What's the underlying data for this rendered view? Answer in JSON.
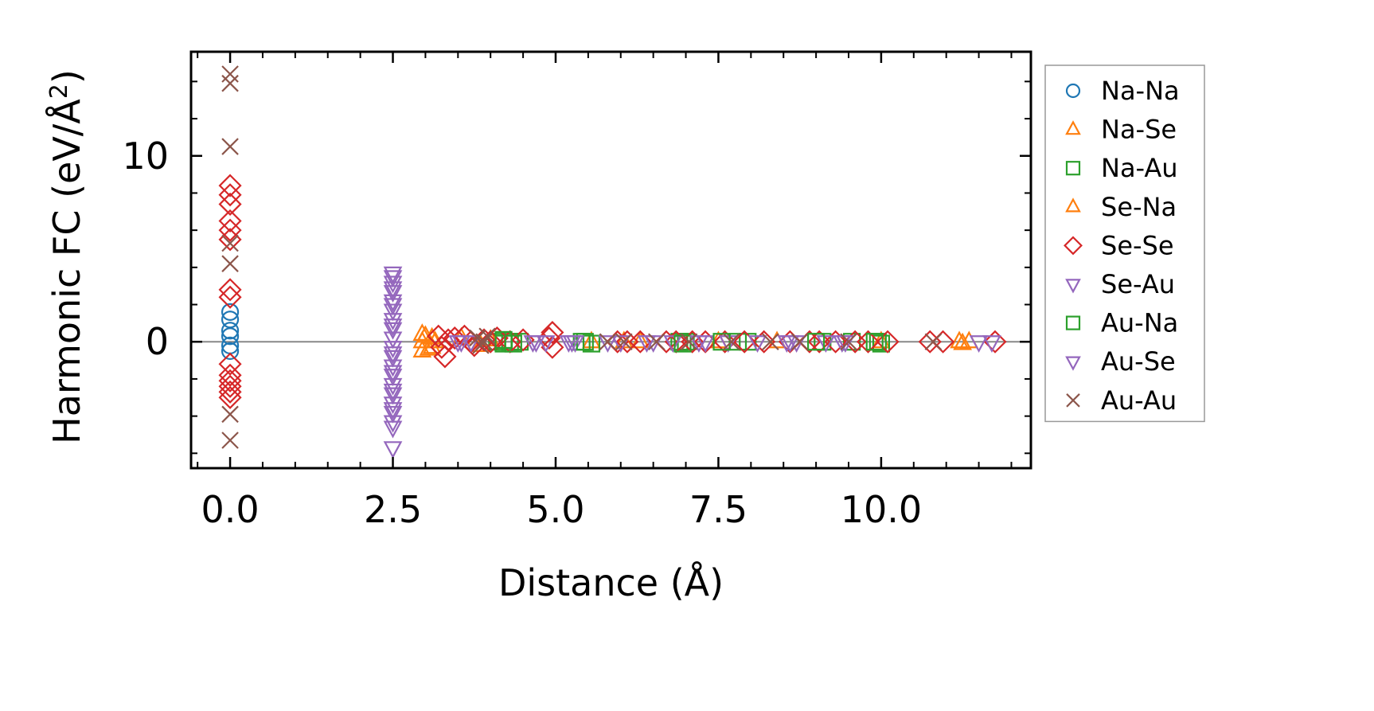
{
  "chart_data": {
    "type": "scatter",
    "xlabel": "Distance (Å)",
    "ylabel": "Harmonic FC (eV/Å²)",
    "ylabel_base": "Harmonic FC (eV/Å",
    "ylabel_sup": "2",
    "ylabel_tail": ")",
    "xlim": [
      -0.6,
      12.3
    ],
    "ylim": [
      -6.8,
      15.6
    ],
    "xticks": [
      0.0,
      2.5,
      5.0,
      7.5,
      10.0
    ],
    "xtick_labels": [
      "0.0",
      "2.5",
      "5.0",
      "7.5",
      "10.0"
    ],
    "yticks": [
      0,
      10
    ],
    "ytick_labels": [
      "0",
      "10"
    ],
    "x_minor_step": 0.5,
    "y_minor_step": 2,
    "zero_line": true,
    "legend_position": "outside-right",
    "series": [
      {
        "name": "Na-Na",
        "marker": "circle",
        "color": "#1f77b4",
        "points": [
          [
            0,
            1.6
          ],
          [
            0,
            1.2
          ],
          [
            0,
            0.6
          ],
          [
            0,
            0.3
          ],
          [
            0,
            -0.2
          ],
          [
            0,
            -0.5
          ]
        ]
      },
      {
        "name": "Na-Se",
        "marker": "triangle-up",
        "color": "#ff7f0e",
        "points": [
          [
            2.95,
            0.4
          ],
          [
            2.95,
            0.0
          ],
          [
            2.95,
            -0.5
          ],
          [
            3.1,
            0.2
          ],
          [
            3.1,
            -0.3
          ],
          [
            3.55,
            0.2
          ],
          [
            3.85,
            -0.2
          ],
          [
            5.55,
            0.0
          ],
          [
            6.05,
            0.0
          ],
          [
            7.5,
            0.0
          ],
          [
            10.0,
            0.0
          ],
          [
            11.2,
            0.0
          ],
          [
            11.35,
            0.0
          ]
        ]
      },
      {
        "name": "Na-Au",
        "marker": "square",
        "color": "#2ca02c",
        "points": [
          [
            4.1,
            0.0
          ],
          [
            4.2,
            -0.1
          ],
          [
            4.3,
            0.0
          ],
          [
            4.45,
            0.0
          ],
          [
            5.4,
            0.0
          ],
          [
            5.55,
            -0.1
          ],
          [
            6.9,
            0.0
          ],
          [
            7.0,
            0.0
          ],
          [
            7.8,
            0.0
          ],
          [
            7.95,
            0.0
          ],
          [
            9.1,
            0.0
          ],
          [
            9.55,
            0.0
          ],
          [
            9.95,
            0.0
          ],
          [
            10.0,
            -0.1
          ]
        ]
      },
      {
        "name": "Se-Na",
        "marker": "triangle-up",
        "color": "#ff7f0e",
        "points": [
          [
            3.0,
            0.3
          ],
          [
            3.05,
            -0.4
          ],
          [
            3.15,
            0.0
          ],
          [
            4.0,
            0.1
          ],
          [
            6.3,
            0.0
          ],
          [
            8.4,
            0.0
          ],
          [
            11.25,
            -0.1
          ]
        ]
      },
      {
        "name": "Se-Se",
        "marker": "diamond",
        "color": "#d62728",
        "points": [
          [
            0,
            8.4
          ],
          [
            0,
            7.9
          ],
          [
            0,
            7.4
          ],
          [
            0,
            6.5
          ],
          [
            0,
            6.0
          ],
          [
            0,
            5.5
          ],
          [
            0,
            2.8
          ],
          [
            0,
            2.4
          ],
          [
            0,
            -1.2
          ],
          [
            0,
            -1.8
          ],
          [
            0,
            -2.1
          ],
          [
            0,
            -2.4
          ],
          [
            0,
            -2.7
          ],
          [
            0,
            -3.0
          ],
          [
            3.2,
            0.3
          ],
          [
            3.25,
            -0.3
          ],
          [
            3.3,
            -0.8
          ],
          [
            3.35,
            0.1
          ],
          [
            3.45,
            0.2
          ],
          [
            3.6,
            0.3
          ],
          [
            3.7,
            0.0
          ],
          [
            3.75,
            -0.2
          ],
          [
            3.9,
            0.1
          ],
          [
            4.0,
            0.0
          ],
          [
            4.1,
            0.2
          ],
          [
            4.3,
            0.0
          ],
          [
            4.5,
            0.1
          ],
          [
            4.9,
            0.2
          ],
          [
            4.95,
            0.5
          ],
          [
            4.95,
            -0.3
          ],
          [
            5.95,
            0.0
          ],
          [
            6.1,
            0.0
          ],
          [
            6.3,
            0.0
          ],
          [
            6.7,
            0.0
          ],
          [
            6.85,
            0.0
          ],
          [
            7.1,
            0.0
          ],
          [
            7.3,
            0.0
          ],
          [
            7.6,
            0.0
          ],
          [
            7.9,
            0.0
          ],
          [
            8.2,
            0.0
          ],
          [
            8.6,
            0.0
          ],
          [
            8.9,
            0.0
          ],
          [
            9.05,
            0.0
          ],
          [
            9.3,
            0.0
          ],
          [
            9.6,
            0.0
          ],
          [
            9.8,
            0.0
          ],
          [
            10.1,
            0.0
          ],
          [
            10.75,
            0.0
          ],
          [
            10.95,
            0.0
          ],
          [
            11.75,
            0.0
          ]
        ]
      },
      {
        "name": "Se-Au",
        "marker": "triangle-down",
        "color": "#9467bd",
        "points": [
          [
            2.5,
            3.7
          ],
          [
            2.5,
            3.2
          ],
          [
            2.5,
            2.7
          ],
          [
            2.5,
            2.2
          ],
          [
            2.5,
            1.7
          ],
          [
            2.5,
            1.2
          ],
          [
            2.5,
            0.7
          ],
          [
            2.5,
            0.2
          ],
          [
            2.5,
            -0.3
          ],
          [
            2.5,
            -0.8
          ],
          [
            2.5,
            -1.3
          ],
          [
            2.5,
            -1.8
          ],
          [
            2.5,
            -2.3
          ],
          [
            2.5,
            -2.8
          ],
          [
            2.5,
            -3.3
          ],
          [
            2.5,
            -3.8
          ],
          [
            2.5,
            -4.3
          ],
          [
            2.5,
            -5.7
          ],
          [
            3.55,
            0.0
          ],
          [
            3.7,
            0.0
          ],
          [
            4.65,
            0.0
          ],
          [
            4.85,
            0.0
          ],
          [
            5.2,
            0.0
          ],
          [
            5.3,
            0.0
          ],
          [
            5.8,
            0.0
          ],
          [
            6.0,
            0.0
          ],
          [
            6.5,
            0.0
          ],
          [
            6.8,
            0.0
          ],
          [
            7.3,
            0.0
          ],
          [
            7.65,
            0.0
          ],
          [
            8.1,
            0.0
          ],
          [
            8.55,
            0.0
          ],
          [
            8.7,
            0.0
          ],
          [
            9.15,
            0.0
          ],
          [
            9.45,
            0.0
          ],
          [
            11.5,
            0.0
          ]
        ]
      },
      {
        "name": "Au-Na",
        "marker": "square",
        "color": "#2ca02c",
        "points": [
          [
            4.2,
            0.1
          ],
          [
            4.35,
            -0.1
          ],
          [
            5.45,
            0.0
          ],
          [
            6.95,
            -0.1
          ],
          [
            7.55,
            0.0
          ],
          [
            9.0,
            0.0
          ],
          [
            9.9,
            0.0
          ]
        ]
      },
      {
        "name": "Au-Se",
        "marker": "triangle-down",
        "color": "#9467bd",
        "points": [
          [
            2.5,
            3.5
          ],
          [
            2.5,
            2.9
          ],
          [
            2.5,
            2.0
          ],
          [
            2.5,
            0.9
          ],
          [
            2.5,
            -0.6
          ],
          [
            2.5,
            -1.6
          ],
          [
            2.5,
            -2.6
          ],
          [
            2.5,
            -3.6
          ],
          [
            2.5,
            -4.6
          ],
          [
            3.5,
            0.0
          ],
          [
            4.7,
            0.0
          ],
          [
            5.25,
            0.0
          ],
          [
            6.4,
            0.0
          ],
          [
            7.2,
            0.0
          ],
          [
            8.6,
            0.0
          ],
          [
            9.4,
            0.0
          ],
          [
            11.7,
            0.0
          ]
        ]
      },
      {
        "name": "Au-Au",
        "marker": "x",
        "color": "#8c564b",
        "points": [
          [
            0,
            14.4
          ],
          [
            0,
            13.9
          ],
          [
            0,
            10.5
          ],
          [
            0,
            5.3
          ],
          [
            0,
            4.2
          ],
          [
            0,
            -3.9
          ],
          [
            0,
            -5.3
          ],
          [
            3.8,
            0.2
          ],
          [
            3.85,
            -0.2
          ],
          [
            3.9,
            0.0
          ],
          [
            3.95,
            0.3
          ],
          [
            5.8,
            0.0
          ],
          [
            6.05,
            0.0
          ],
          [
            6.55,
            0.0
          ],
          [
            7.05,
            0.0
          ],
          [
            7.7,
            0.0
          ],
          [
            8.3,
            0.0
          ],
          [
            8.75,
            0.0
          ],
          [
            9.5,
            0.0
          ],
          [
            10.8,
            0.0
          ]
        ]
      }
    ]
  }
}
